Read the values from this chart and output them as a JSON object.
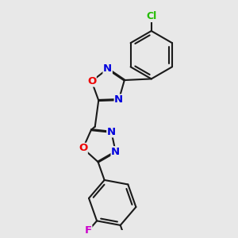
{
  "bg": "#e8e8e8",
  "bond_color": "#1a1a1a",
  "atom_colors": {
    "O": "#ee0000",
    "N": "#0000dd",
    "Cl": "#22bb00",
    "F": "#cc00cc",
    "C": "#1a1a1a"
  },
  "bond_lw": 1.5,
  "dbl_off": 0.018,
  "fs": 9.5
}
